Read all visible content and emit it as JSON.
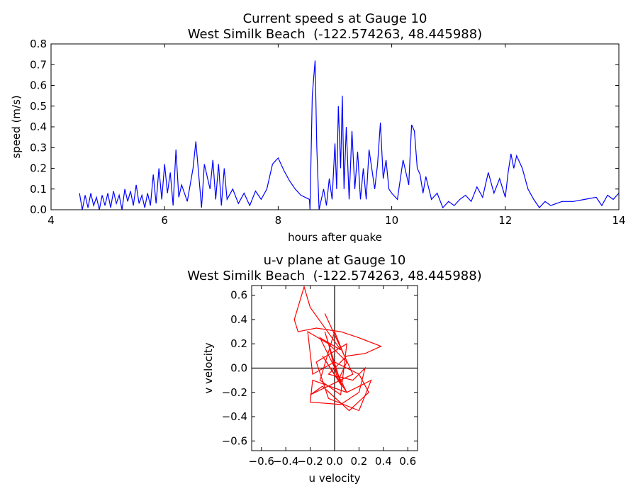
{
  "chart_data": [
    {
      "type": "line",
      "title": "Current speed s at Gauge 10",
      "subtitle": "West Similk Beach  (-122.574263, 48.445988)",
      "xlabel": "hours after quake",
      "ylabel": "speed (m/s)",
      "color": "#0000ff",
      "xlim": [
        4,
        14
      ],
      "xticks": [
        4,
        6,
        8,
        10,
        12,
        14
      ],
      "ylim": [
        0,
        0.8
      ],
      "yticks": [
        {
          "value": 0,
          "label": "0.0"
        },
        0.1,
        0.2,
        0.3,
        0.4,
        0.5,
        0.6,
        0.7,
        0.8
      ],
      "x": [
        4.5,
        4.55,
        4.6,
        4.65,
        4.7,
        4.75,
        4.8,
        4.85,
        4.9,
        4.95,
        5.0,
        5.05,
        5.1,
        5.15,
        5.2,
        5.25,
        5.3,
        5.35,
        5.4,
        5.45,
        5.5,
        5.55,
        5.6,
        5.65,
        5.7,
        5.75,
        5.8,
        5.85,
        5.9,
        5.95,
        6.0,
        6.05,
        6.1,
        6.15,
        6.2,
        6.25,
        6.3,
        6.4,
        6.5,
        6.55,
        6.6,
        6.65,
        6.7,
        6.8,
        6.85,
        6.9,
        6.95,
        7.0,
        7.05,
        7.1,
        7.2,
        7.3,
        7.4,
        7.5,
        7.6,
        7.7,
        7.8,
        7.9,
        8.0,
        8.1,
        8.2,
        8.3,
        8.4,
        8.55,
        8.56,
        8.6,
        8.65,
        8.68,
        8.72,
        8.8,
        8.85,
        8.9,
        8.95,
        9.0,
        9.03,
        9.06,
        9.1,
        9.13,
        9.16,
        9.2,
        9.25,
        9.3,
        9.35,
        9.4,
        9.45,
        9.5,
        9.55,
        9.6,
        9.7,
        9.75,
        9.8,
        9.85,
        9.9,
        9.95,
        10.0,
        10.1,
        10.2,
        10.3,
        10.35,
        10.4,
        10.45,
        10.5,
        10.55,
        10.6,
        10.7,
        10.8,
        10.9,
        11.0,
        11.1,
        11.2,
        11.3,
        11.4,
        11.5,
        11.6,
        11.7,
        11.8,
        11.9,
        12.0,
        12.05,
        12.1,
        12.15,
        12.2,
        12.3,
        12.4,
        12.5,
        12.6,
        12.7,
        12.8,
        12.9,
        13.0,
        13.2,
        13.4,
        13.6,
        13.7,
        13.8,
        13.9,
        14.0
      ],
      "values": [
        0.08,
        0.0,
        0.07,
        0.01,
        0.08,
        0.02,
        0.06,
        0.0,
        0.07,
        0.02,
        0.08,
        0.01,
        0.09,
        0.03,
        0.07,
        0.0,
        0.1,
        0.04,
        0.09,
        0.02,
        0.12,
        0.03,
        0.07,
        0.01,
        0.08,
        0.02,
        0.17,
        0.03,
        0.2,
        0.05,
        0.22,
        0.08,
        0.18,
        0.02,
        0.29,
        0.06,
        0.12,
        0.04,
        0.2,
        0.33,
        0.17,
        0.01,
        0.22,
        0.1,
        0.24,
        0.05,
        0.22,
        0.02,
        0.2,
        0.05,
        0.1,
        0.03,
        0.08,
        0.02,
        0.09,
        0.05,
        0.1,
        0.22,
        0.25,
        0.19,
        0.14,
        0.1,
        0.07,
        0.05,
        0.0,
        0.55,
        0.72,
        0.3,
        0.0,
        0.1,
        0.02,
        0.15,
        0.05,
        0.32,
        0.1,
        0.5,
        0.2,
        0.55,
        0.1,
        0.4,
        0.05,
        0.38,
        0.1,
        0.28,
        0.05,
        0.2,
        0.05,
        0.29,
        0.1,
        0.22,
        0.42,
        0.15,
        0.24,
        0.1,
        0.08,
        0.05,
        0.24,
        0.12,
        0.41,
        0.38,
        0.2,
        0.17,
        0.08,
        0.16,
        0.05,
        0.08,
        0.01,
        0.04,
        0.02,
        0.05,
        0.07,
        0.04,
        0.11,
        0.06,
        0.18,
        0.08,
        0.15,
        0.06,
        0.18,
        0.27,
        0.2,
        0.26,
        0.2,
        0.1,
        0.05,
        0.01,
        0.04,
        0.02,
        0.03,
        0.04,
        0.04,
        0.05,
        0.06,
        0.02,
        0.07,
        0.05,
        0.08
      ]
    },
    {
      "type": "line",
      "title": "u-v plane at Gauge 10",
      "subtitle": "West Similk Beach  (-122.574263, 48.445988)",
      "xlabel": "u velocity",
      "ylabel": "v velocity",
      "color": "#ff0000",
      "crosshair": true,
      "xlim": [
        -0.68,
        0.68
      ],
      "xticks": [
        {
          "value": -0.6,
          "label": "−0.6"
        },
        {
          "value": -0.4,
          "label": "−0.4"
        },
        {
          "value": -0.2,
          "label": "−0.2"
        },
        {
          "value": 0,
          "label": "0.0"
        },
        0.2,
        0.4,
        0.6
      ],
      "ylim": [
        -0.68,
        0.68
      ],
      "yticks": [
        {
          "value": -0.6,
          "label": "−0.6"
        },
        {
          "value": -0.4,
          "label": "−0.4"
        },
        {
          "value": -0.2,
          "label": "−0.2"
        },
        {
          "value": 0,
          "label": "0.0"
        },
        0.2,
        0.4,
        0.6
      ],
      "x": [
        0.0,
        -0.05,
        0.04,
        -0.08,
        0.06,
        -0.1,
        0.1,
        -0.12,
        0.05,
        -0.2,
        -0.25,
        -0.33,
        -0.3,
        -0.15,
        0.05,
        0.2,
        0.38,
        0.25,
        0.1,
        -0.05,
        0.15,
        0.25,
        0.2,
        0.05,
        -0.2,
        -0.18,
        0.1,
        0.3,
        0.2,
        -0.05,
        -0.15,
        0.1,
        0.05,
        -0.12,
        0.0,
        0.08,
        -0.08,
        0.15,
        -0.2,
        -0.1,
        0.12,
        0.28,
        0.2,
        0.0,
        -0.18,
        -0.22,
        -0.05,
        0.1,
        0.03,
        0.0
      ],
      "values": [
        0.0,
        0.2,
        -0.1,
        0.3,
        -0.15,
        0.1,
        -0.2,
        0.25,
        0.15,
        0.5,
        0.67,
        0.4,
        0.3,
        0.33,
        0.3,
        0.25,
        0.18,
        0.12,
        0.1,
        -0.05,
        -0.1,
        0.0,
        -0.2,
        -0.3,
        -0.28,
        -0.1,
        -0.2,
        -0.1,
        -0.35,
        -0.25,
        0.05,
        0.2,
        -0.22,
        -0.1,
        0.3,
        0.1,
        0.45,
        -0.05,
        -0.22,
        -0.15,
        -0.35,
        -0.2,
        -0.05,
        0.05,
        -0.05,
        0.3,
        0.2,
        0.05,
        -0.1,
        0.0
      ]
    }
  ]
}
